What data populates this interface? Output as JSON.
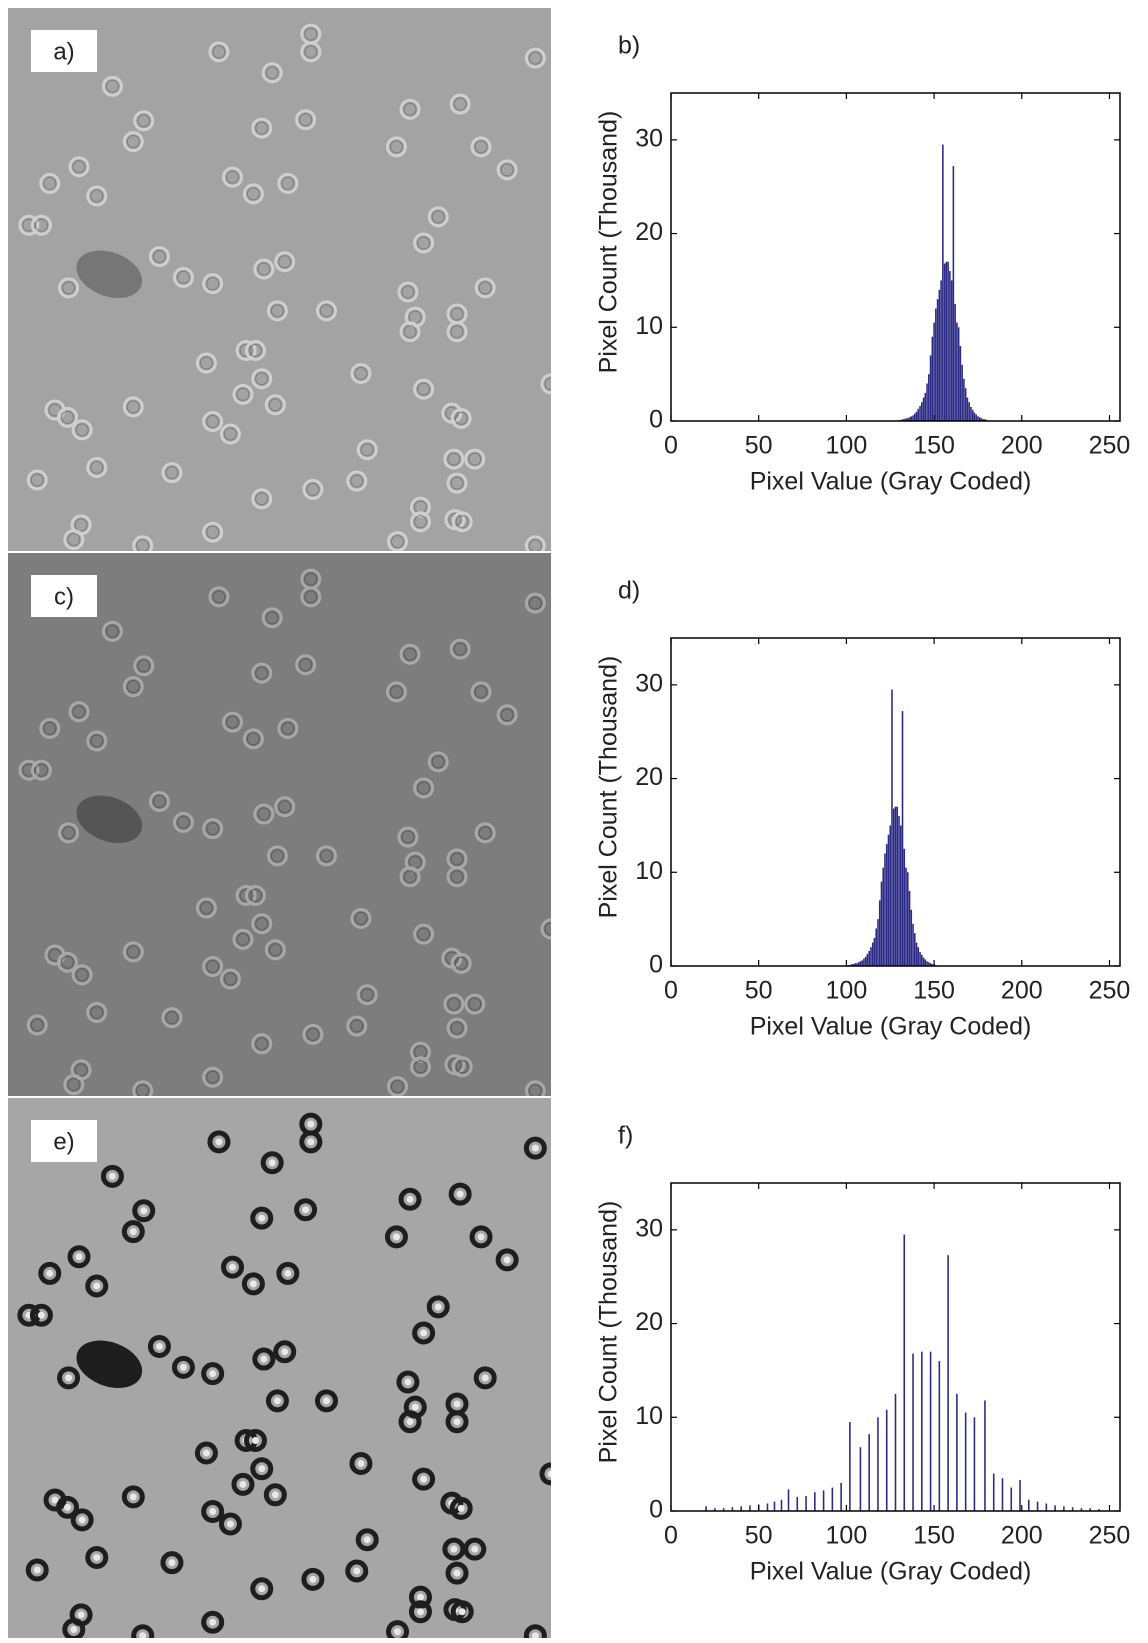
{
  "images": [
    {
      "label": "a)"
    },
    {
      "label": "c)"
    },
    {
      "label": "e)"
    }
  ],
  "chart_data": [
    {
      "type": "bar",
      "title": "b)",
      "x_label": "Pixel Value (Gray Coded)",
      "y_label": "Pixel Count (Thousand)",
      "color": "#2b2a86",
      "xlim": [
        0,
        256
      ],
      "xticks": [
        0,
        50,
        100,
        150,
        200,
        250
      ],
      "ylim": [
        0,
        35
      ],
      "yticks": [
        0,
        10,
        20,
        30
      ],
      "x": [
        130,
        131,
        132,
        133,
        134,
        135,
        136,
        137,
        138,
        139,
        140,
        141,
        142,
        143,
        144,
        145,
        146,
        147,
        148,
        149,
        150,
        151,
        152,
        153,
        154,
        155,
        156,
        157,
        158,
        159,
        160,
        161,
        162,
        163,
        164,
        165,
        166,
        167,
        168,
        169,
        170,
        171,
        172,
        173,
        174,
        175,
        176,
        177,
        178,
        179,
        180
      ],
      "values": [
        0.1,
        0.1,
        0.2,
        0.2,
        0.3,
        0.3,
        0.4,
        0.5,
        0.6,
        0.8,
        1,
        1.3,
        1.6,
        2,
        2.5,
        3,
        4,
        5,
        7,
        9,
        10.5,
        12,
        13,
        14,
        15,
        29.5,
        16.8,
        17,
        17,
        16,
        15,
        27.2,
        12.5,
        10.5,
        10,
        8,
        6,
        4.5,
        3.5,
        2.5,
        2,
        1.5,
        1.2,
        0.9,
        0.7,
        0.5,
        0.4,
        0.3,
        0.2,
        0.2,
        0.1
      ]
    },
    {
      "type": "bar",
      "title": "d)",
      "x_label": "Pixel Value (Gray Coded)",
      "y_label": "Pixel Count (Thousand)",
      "color": "#2b2a86",
      "xlim": [
        0,
        256
      ],
      "xticks": [
        0,
        50,
        100,
        150,
        200,
        250
      ],
      "ylim": [
        0,
        35
      ],
      "yticks": [
        0,
        10,
        20,
        30
      ],
      "x": [
        101,
        102,
        103,
        104,
        105,
        106,
        107,
        108,
        109,
        110,
        111,
        112,
        113,
        114,
        115,
        116,
        117,
        118,
        119,
        120,
        121,
        122,
        123,
        124,
        125,
        126,
        127,
        128,
        129,
        130,
        131,
        132,
        133,
        134,
        135,
        136,
        137,
        138,
        139,
        140,
        141,
        142,
        143,
        144,
        145,
        146,
        147,
        148,
        149,
        150,
        151
      ],
      "values": [
        0.1,
        0.1,
        0.2,
        0.2,
        0.3,
        0.3,
        0.4,
        0.5,
        0.6,
        0.8,
        1,
        1.3,
        1.6,
        2,
        2.5,
        3,
        4,
        5,
        7,
        9,
        10.5,
        12,
        13,
        14,
        15,
        29.5,
        16.8,
        17,
        17,
        16,
        15,
        27.2,
        12.5,
        10.5,
        10,
        8,
        6,
        4.5,
        3.5,
        2.5,
        2,
        1.5,
        1.2,
        0.9,
        0.7,
        0.5,
        0.4,
        0.3,
        0.2,
        0.2,
        0.1
      ]
    },
    {
      "type": "bar",
      "title": "f)",
      "x_label": "Pixel Value (Gray Coded)",
      "y_label": "Pixel Count (Thousand)",
      "color": "#2b2a86",
      "xlim": [
        0,
        256
      ],
      "xticks": [
        0,
        50,
        100,
        150,
        200,
        250
      ],
      "ylim": [
        0,
        35
      ],
      "yticks": [
        0,
        10,
        20,
        30
      ],
      "x": [
        20,
        25,
        30,
        35,
        40,
        45,
        50,
        55,
        59,
        63,
        67,
        72,
        77,
        82,
        87,
        92,
        97,
        102,
        108,
        113,
        118,
        123,
        128,
        133,
        138,
        143,
        148,
        153,
        158,
        163,
        168,
        173,
        179,
        184,
        189,
        194,
        199,
        204,
        209,
        214,
        219,
        224,
        229,
        234,
        239,
        244
      ],
      "values": [
        0.5,
        0.3,
        0.3,
        0.4,
        0.5,
        0.6,
        0.7,
        0.8,
        1,
        1.2,
        2.3,
        1.5,
        1.6,
        2,
        2.2,
        2.5,
        3,
        9.5,
        6.8,
        8.2,
        10,
        10.8,
        12.5,
        29.5,
        16.8,
        17,
        17,
        16,
        27.3,
        12.5,
        10.5,
        10,
        11.8,
        4,
        3.5,
        2.5,
        3.3,
        1.2,
        1,
        0.8,
        0.6,
        0.5,
        0.4,
        0.3,
        0.3,
        0.2
      ]
    }
  ]
}
